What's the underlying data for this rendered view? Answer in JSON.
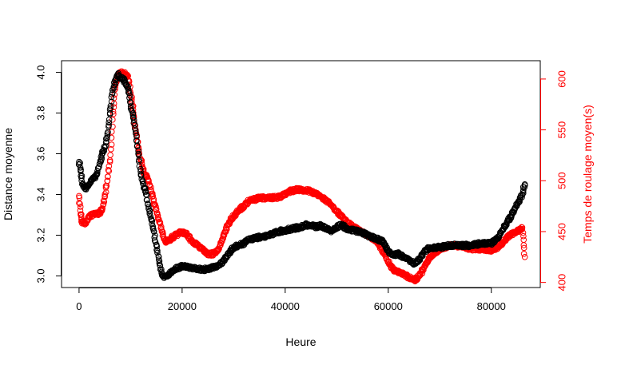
{
  "chart_data": {
    "type": "scatter",
    "xlabel": "Heure",
    "ylabel": "Distance moyenne",
    "y2label": "Temps de roulage moyen(s)",
    "xlim": [
      -3400,
      89500
    ],
    "ylim": [
      2.943,
      4.057
    ],
    "y2lim": [
      395.0,
      618.0
    ],
    "x_ticks": [
      0,
      20000,
      40000,
      60000,
      80000
    ],
    "y_ticks": [
      3.0,
      3.2,
      3.4,
      3.6,
      3.8,
      4.0
    ],
    "y2_ticks": [
      400,
      450,
      500,
      550,
      600
    ],
    "x_tick_labels": [
      "0",
      "20000",
      "40000",
      "60000",
      "80000"
    ],
    "y_tick_labels": [
      "3.0",
      "3.2",
      "3.4",
      "3.6",
      "3.8",
      "4.0"
    ],
    "y2_tick_labels": [
      "400",
      "450",
      "500",
      "550",
      "600"
    ],
    "marker": "open-circle",
    "series": [
      {
        "axis": "left",
        "color": "#000000",
        "points": [
          [
            0,
            3.56
          ],
          [
            300,
            3.52
          ],
          [
            600,
            3.45
          ],
          [
            1200,
            3.43
          ],
          [
            2000,
            3.45
          ],
          [
            2800,
            3.48
          ],
          [
            3500,
            3.5
          ],
          [
            4000,
            3.55
          ],
          [
            4500,
            3.6
          ],
          [
            5000,
            3.63
          ],
          [
            5500,
            3.7
          ],
          [
            6000,
            3.8
          ],
          [
            6500,
            3.9
          ],
          [
            7000,
            3.96
          ],
          [
            7500,
            3.99
          ],
          [
            8000,
            3.97
          ],
          [
            8500,
            3.97
          ],
          [
            9000,
            3.95
          ],
          [
            9500,
            3.92
          ],
          [
            10000,
            3.85
          ],
          [
            10500,
            3.78
          ],
          [
            11000,
            3.7
          ],
          [
            11500,
            3.6
          ],
          [
            12000,
            3.5
          ],
          [
            12500,
            3.45
          ],
          [
            13000,
            3.4
          ],
          [
            13500,
            3.33
          ],
          [
            14000,
            3.28
          ],
          [
            14500,
            3.22
          ],
          [
            15000,
            3.15
          ],
          [
            15500,
            3.08
          ],
          [
            16000,
            3.02
          ],
          [
            16500,
            2.99
          ],
          [
            17000,
            3.0
          ],
          [
            17500,
            3.01
          ],
          [
            18500,
            3.03
          ],
          [
            20000,
            3.05
          ],
          [
            22000,
            3.04
          ],
          [
            24000,
            3.03
          ],
          [
            26000,
            3.04
          ],
          [
            27000,
            3.05
          ],
          [
            28000,
            3.07
          ],
          [
            29000,
            3.11
          ],
          [
            30000,
            3.14
          ],
          [
            31000,
            3.15
          ],
          [
            32000,
            3.16
          ],
          [
            33000,
            3.18
          ],
          [
            35000,
            3.19
          ],
          [
            37000,
            3.2
          ],
          [
            39000,
            3.22
          ],
          [
            41000,
            3.23
          ],
          [
            43000,
            3.24
          ],
          [
            44000,
            3.25
          ],
          [
            45000,
            3.25
          ],
          [
            46000,
            3.24
          ],
          [
            47000,
            3.25
          ],
          [
            48000,
            3.23
          ],
          [
            49000,
            3.22
          ],
          [
            50000,
            3.24
          ],
          [
            51000,
            3.25
          ],
          [
            52000,
            3.23
          ],
          [
            54000,
            3.22
          ],
          [
            56000,
            3.2
          ],
          [
            58000,
            3.18
          ],
          [
            59000,
            3.17
          ],
          [
            60000,
            3.12
          ],
          [
            61000,
            3.1
          ],
          [
            62000,
            3.11
          ],
          [
            63000,
            3.09
          ],
          [
            64000,
            3.08
          ],
          [
            65000,
            3.06
          ],
          [
            66000,
            3.08
          ],
          [
            67000,
            3.12
          ],
          [
            68000,
            3.14
          ],
          [
            70000,
            3.14
          ],
          [
            72000,
            3.15
          ],
          [
            74000,
            3.15
          ],
          [
            76000,
            3.15
          ],
          [
            78000,
            3.16
          ],
          [
            80000,
            3.16
          ],
          [
            81000,
            3.18
          ],
          [
            82000,
            3.22
          ],
          [
            83000,
            3.26
          ],
          [
            84000,
            3.3
          ],
          [
            85000,
            3.35
          ],
          [
            86000,
            3.4
          ],
          [
            86500,
            3.45
          ]
        ]
      },
      {
        "axis": "right",
        "color": "#ff0000",
        "points": [
          [
            0,
            485
          ],
          [
            300,
            467
          ],
          [
            600,
            460
          ],
          [
            1200,
            458
          ],
          [
            2000,
            465
          ],
          [
            3000,
            467
          ],
          [
            4000,
            468
          ],
          [
            4500,
            472
          ],
          [
            5000,
            485
          ],
          [
            5500,
            500
          ],
          [
            6000,
            520
          ],
          [
            6500,
            560
          ],
          [
            7000,
            590
          ],
          [
            7500,
            604
          ],
          [
            8000,
            606
          ],
          [
            8500,
            606
          ],
          [
            9000,
            604
          ],
          [
            9500,
            603
          ],
          [
            10000,
            586
          ],
          [
            10500,
            570
          ],
          [
            11000,
            550
          ],
          [
            11500,
            532
          ],
          [
            12000,
            520
          ],
          [
            12500,
            510
          ],
          [
            13000,
            505
          ],
          [
            13500,
            500
          ],
          [
            14000,
            490
          ],
          [
            14500,
            480
          ],
          [
            15000,
            472
          ],
          [
            15500,
            462
          ],
          [
            16000,
            452
          ],
          [
            16500,
            443
          ],
          [
            17000,
            440
          ],
          [
            18000,
            444
          ],
          [
            19000,
            447
          ],
          [
            20000,
            450
          ],
          [
            21000,
            447
          ],
          [
            22000,
            440
          ],
          [
            23000,
            437
          ],
          [
            24000,
            432
          ],
          [
            25000,
            428
          ],
          [
            26000,
            428
          ],
          [
            27000,
            432
          ],
          [
            28000,
            445
          ],
          [
            29000,
            458
          ],
          [
            30000,
            465
          ],
          [
            31000,
            471
          ],
          [
            32000,
            475
          ],
          [
            33000,
            480
          ],
          [
            35000,
            483
          ],
          [
            37000,
            483
          ],
          [
            39000,
            484
          ],
          [
            40000,
            487
          ],
          [
            41000,
            490
          ],
          [
            42000,
            491
          ],
          [
            43000,
            491
          ],
          [
            44000,
            490
          ],
          [
            45000,
            490
          ],
          [
            46000,
            487
          ],
          [
            47000,
            484
          ],
          [
            48000,
            480
          ],
          [
            49000,
            476
          ],
          [
            50000,
            470
          ],
          [
            51000,
            465
          ],
          [
            52000,
            460
          ],
          [
            53000,
            455
          ],
          [
            54000,
            452
          ],
          [
            55000,
            449
          ],
          [
            56000,
            446
          ],
          [
            57000,
            443
          ],
          [
            58000,
            440
          ],
          [
            59000,
            430
          ],
          [
            60000,
            420
          ],
          [
            61000,
            412
          ],
          [
            62000,
            410
          ],
          [
            63000,
            408
          ],
          [
            64000,
            405
          ],
          [
            65000,
            402
          ],
          [
            66000,
            406
          ],
          [
            67000,
            415
          ],
          [
            68000,
            425
          ],
          [
            70000,
            433
          ],
          [
            72000,
            436
          ],
          [
            74000,
            436
          ],
          [
            76000,
            433
          ],
          [
            78000,
            433
          ],
          [
            80000,
            432
          ],
          [
            81000,
            434
          ],
          [
            82000,
            438
          ],
          [
            83000,
            444
          ],
          [
            84000,
            448
          ],
          [
            85000,
            450
          ],
          [
            86000,
            454
          ],
          [
            86500,
            425
          ]
        ]
      }
    ]
  }
}
